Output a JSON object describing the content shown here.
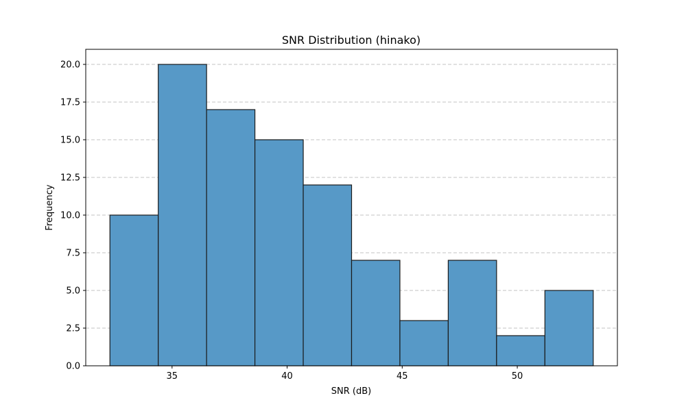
{
  "chart_data": {
    "type": "bar",
    "title": "SNR Distribution (hinako)",
    "xlabel": "SNR (dB)",
    "ylabel": "Frequency",
    "bins": [
      {
        "start": 32.3,
        "end": 34.4,
        "count": 10
      },
      {
        "start": 34.4,
        "end": 36.5,
        "count": 20
      },
      {
        "start": 36.5,
        "end": 38.6,
        "count": 17
      },
      {
        "start": 38.6,
        "end": 40.7,
        "count": 15
      },
      {
        "start": 40.7,
        "end": 42.8,
        "count": 12
      },
      {
        "start": 42.8,
        "end": 44.9,
        "count": 7
      },
      {
        "start": 44.9,
        "end": 47.0,
        "count": 3
      },
      {
        "start": 47.0,
        "end": 49.1,
        "count": 7
      },
      {
        "start": 49.1,
        "end": 51.2,
        "count": 2
      },
      {
        "start": 51.2,
        "end": 53.3,
        "count": 5
      }
    ],
    "xlim": [
      31.25,
      54.35
    ],
    "ylim": [
      0,
      21
    ],
    "xticks": [
      35,
      40,
      45,
      50
    ],
    "yticks": [
      0.0,
      2.5,
      5.0,
      7.5,
      10.0,
      12.5,
      15.0,
      17.5,
      20.0
    ],
    "ytick_labels": [
      "0.0",
      "2.5",
      "5.0",
      "7.5",
      "10.0",
      "12.5",
      "15.0",
      "17.5",
      "20.0"
    ],
    "xtick_labels": [
      "35",
      "40",
      "45",
      "50"
    ],
    "grid": "y-dashed",
    "bar_color": "#5799c7",
    "edge_color": "#1a1a1a"
  }
}
